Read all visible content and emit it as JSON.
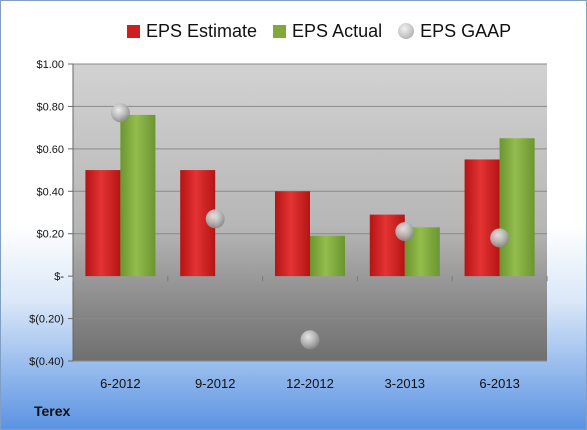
{
  "company": "Terex",
  "chart_data": {
    "type": "bar",
    "title": "",
    "xlabel": "",
    "ylabel": "",
    "categories": [
      "6-2012",
      "9-2012",
      "12-2012",
      "3-2013",
      "6-2013"
    ],
    "ylim": [
      -0.4,
      1.0
    ],
    "yticks": [
      1.0,
      0.8,
      0.6,
      0.4,
      0.2,
      0,
      -0.2,
      -0.4
    ],
    "ytick_labels": [
      "$1.00",
      "$0.80",
      "$0.60",
      "$0.40",
      "$0.20",
      "$-",
      "$(0.20)",
      "$(0.40)"
    ],
    "grid": true,
    "legend_position": "top",
    "series": [
      {
        "name": "EPS Estimate",
        "type": "bar",
        "color": "#cc1f1f",
        "values": [
          0.5,
          0.5,
          0.4,
          0.29,
          0.55
        ]
      },
      {
        "name": "EPS Actual",
        "type": "bar",
        "color": "#7fa93a",
        "values": [
          0.76,
          null,
          0.19,
          0.23,
          0.65
        ]
      },
      {
        "name": "EPS GAAP",
        "type": "scatter",
        "color": "#b8b8b8",
        "values": [
          0.77,
          0.27,
          -0.3,
          0.21,
          0.18
        ]
      }
    ]
  }
}
